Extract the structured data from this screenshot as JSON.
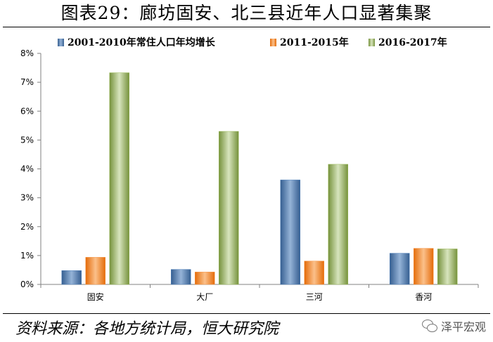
{
  "title": "图表29：廊坊固安、北三县近年人口显著集聚",
  "source": "资料来源：各地方统计局，恒大研究院",
  "watermark": {
    "text": "泽平宏观",
    "icon": "wechat-icon"
  },
  "chart_data": {
    "type": "bar",
    "title": "图表29：廊坊固安、北三县近年人口显著集聚",
    "categories": [
      "固安",
      "大厂",
      "三河",
      "香河"
    ],
    "series": [
      {
        "name": "2001-2010年常住人口年均增长",
        "values": [
          0.48,
          0.52,
          3.62,
          1.08
        ],
        "color": "#4f81bd"
      },
      {
        "name": "2011-2015年",
        "values": [
          0.94,
          0.43,
          0.81,
          1.25
        ],
        "color": "#f79646"
      },
      {
        "name": "2016-2017年",
        "values": [
          7.33,
          5.3,
          4.16,
          1.23
        ],
        "color": "#9bbb59"
      }
    ],
    "ylim": [
      0,
      8
    ],
    "yticks": [
      "0%",
      "1%",
      "2%",
      "3%",
      "4%",
      "5%",
      "6%",
      "7%",
      "8%"
    ],
    "ytick_values": [
      0,
      1,
      2,
      3,
      4,
      5,
      6,
      7,
      8
    ],
    "unit": "%",
    "xlabel": "",
    "ylabel": "",
    "legend_position": "top",
    "grid": false
  }
}
